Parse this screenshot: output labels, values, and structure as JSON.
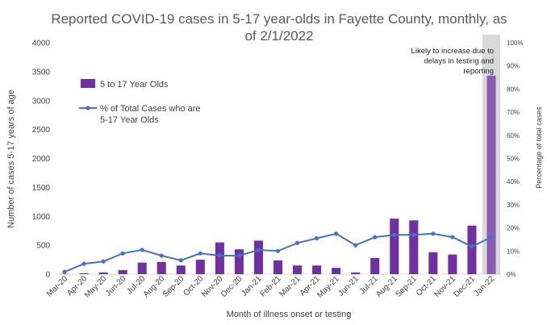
{
  "chart_data": {
    "type": "bar",
    "title": [
      "Reported COVID-19 cases in 5-17 year-olds in Fayette County, monthly, as",
      "of 2/1/2022"
    ],
    "xlabel": "Month of illness onset or testing",
    "ylabel": "Number of cases 5-17 years of age",
    "y2label": "Percentage of total cases",
    "ylim": [
      0,
      4000
    ],
    "yticks": [
      "0",
      "500",
      "1000",
      "1500",
      "2000",
      "2500",
      "3000",
      "3500",
      "4000"
    ],
    "y2lim": [
      0,
      100
    ],
    "y2ticks": [
      "0%",
      "10%",
      "20%",
      "30%",
      "40%",
      "50%",
      "60%",
      "70%",
      "80%",
      "90%",
      "100%"
    ],
    "categories": [
      "Mar-20",
      "Apr-20",
      "May-20",
      "Jun-20",
      "Jul-20",
      "Aug-20",
      "Sep-20",
      "Oct-20",
      "Nov-20",
      "Dec-20",
      "Jan-21",
      "Feb-21",
      "Mar-21",
      "Apr-21",
      "May-21",
      "Jun-21",
      "Jul-21",
      "Aug-21",
      "Sep-21",
      "Oct-21",
      "Nov-21",
      "Dec-21",
      "Jan-22"
    ],
    "series": [
      {
        "name": "5 to 17 Year Olds",
        "kind": "bar",
        "axis": "left",
        "color": "#7030A0",
        "values": [
          5,
          15,
          30,
          70,
          200,
          210,
          150,
          250,
          550,
          430,
          580,
          240,
          150,
          150,
          110,
          30,
          280,
          960,
          930,
          380,
          340,
          840,
          3430
        ]
      },
      {
        "name": "% of Total Cases who are 5-17 Year Olds",
        "legend_lines": [
          "% of Total Cases who are",
          "5-17 Year Olds"
        ],
        "kind": "line",
        "axis": "right",
        "color": "#4472C4",
        "values": [
          1,
          4.5,
          5.5,
          9,
          10.5,
          8,
          6,
          9,
          8,
          8,
          10.5,
          10,
          13.5,
          15.5,
          17.5,
          12.5,
          16,
          17,
          17,
          17.5,
          16,
          12,
          16
        ]
      }
    ],
    "highlight": {
      "category": "Jan-22",
      "color": "#D9D9D9",
      "bar_color": "#8B5BB3",
      "annotation": [
        "Likely to increase due to",
        "delays in testing and",
        "reporting"
      ]
    },
    "grid": false,
    "legend_position": "upper-left"
  }
}
